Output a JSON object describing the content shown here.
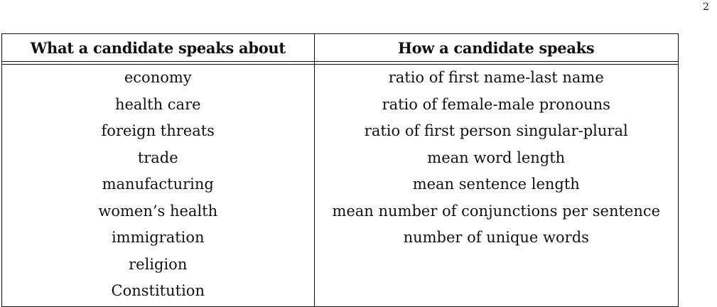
{
  "page": {
    "number": "2"
  },
  "table": {
    "headers": {
      "left": "What a candidate speaks about",
      "right": "How a candidate speaks"
    },
    "rows": [
      {
        "left": "economy",
        "right": "ratio of first name-last name"
      },
      {
        "left": "health care",
        "right": "ratio of female-male pronouns"
      },
      {
        "left": "foreign threats",
        "right": "ratio of first person singular-plural"
      },
      {
        "left": "trade",
        "right": "mean word length"
      },
      {
        "left": "manufacturing",
        "right": "mean sentence length"
      },
      {
        "left": "women’s health",
        "right": "mean number of conjunctions per sentence"
      },
      {
        "left": "immigration",
        "right": "number of unique words"
      },
      {
        "left": "religion",
        "right": ""
      },
      {
        "left": "Constitution",
        "right": ""
      }
    ]
  }
}
